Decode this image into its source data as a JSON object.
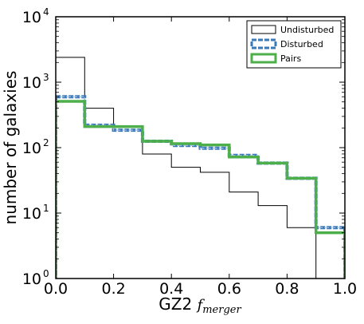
{
  "chart_data": {
    "type": "bar",
    "title": "",
    "xlabel": "GZ2 ",
    "xlabel_math": "f",
    "xlabel_sub": "merger",
    "ylabel": "number of galaxies",
    "xlim": [
      0.0,
      1.0
    ],
    "ylim": [
      1,
      10000
    ],
    "yscale": "log",
    "grid": false,
    "legend_position": "top-right",
    "x_ticks": [
      "0.0",
      "0.2",
      "0.4",
      "0.6",
      "0.8",
      "1.0"
    ],
    "y_ticks": [
      {
        "base": "10",
        "exp": "0"
      },
      {
        "base": "10",
        "exp": "1"
      },
      {
        "base": "10",
        "exp": "2"
      },
      {
        "base": "10",
        "exp": "3"
      },
      {
        "base": "10",
        "exp": "4"
      }
    ],
    "bin_edges": [
      0.0,
      0.1,
      0.2,
      0.3,
      0.4,
      0.5,
      0.6,
      0.7,
      0.8,
      0.9,
      1.0
    ],
    "series": [
      {
        "name": "Undisturbed",
        "color": "#000000",
        "style": "solid-thin",
        "values": [
          2400,
          400,
          210,
          80,
          50,
          42,
          21,
          13,
          6,
          0
        ]
      },
      {
        "name": "Disturbed",
        "color": "#3a78b8",
        "style": "dashed-thick",
        "values": [
          600,
          220,
          185,
          125,
          108,
          98,
          76,
          58,
          34,
          6
        ]
      },
      {
        "name": "Pairs",
        "color": "#4daf4a",
        "style": "solid-thick",
        "values": [
          510,
          210,
          210,
          125,
          115,
          110,
          72,
          58,
          34,
          5
        ]
      }
    ]
  }
}
